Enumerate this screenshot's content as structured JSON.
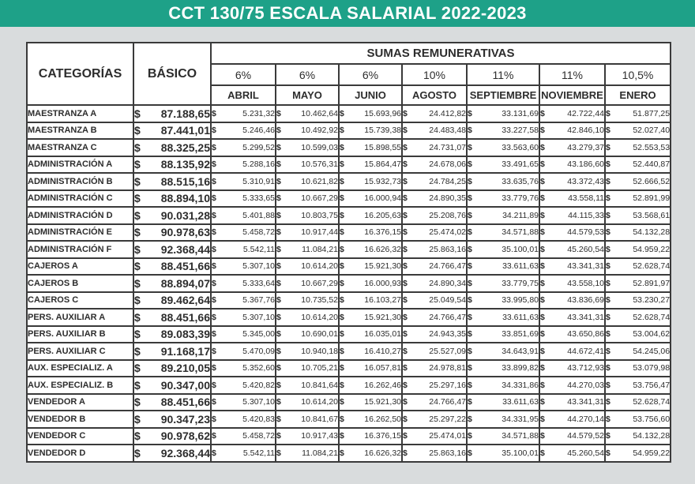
{
  "title": "CCT 130/75 ESCALA SALARIAL 2022-2023",
  "headers": {
    "categorias": "CATEGORÍAS",
    "basico": "BÁSICO",
    "sumas": "SUMAS REMUNERATIVAS",
    "currency": "$",
    "percents": [
      "6%",
      "6%",
      "6%",
      "10%",
      "11%",
      "11%",
      "10,5%"
    ],
    "months": [
      "ABRIL",
      "MAYO",
      "JUNIO",
      "AGOSTO",
      "SEPTIEMBRE",
      "NOVIEMBRE",
      "ENERO"
    ]
  },
  "rows": [
    {
      "cat": "MAESTRANZA A",
      "bas": "87.188,65",
      "v": [
        "5.231,32",
        "10.462,64",
        "15.693,96",
        "24.412,82",
        "33.131,69",
        "42.722,44",
        "51.877,25"
      ]
    },
    {
      "cat": "MAESTRANZA B",
      "bas": "87.441,01",
      "v": [
        "5.246,46",
        "10.492,92",
        "15.739,38",
        "24.483,48",
        "33.227,58",
        "42.846,10",
        "52.027,40"
      ]
    },
    {
      "cat": "MAESTRANZA C",
      "bas": "88.325,25",
      "v": [
        "5.299,52",
        "10.599,03",
        "15.898,55",
        "24.731,07",
        "33.563,60",
        "43.279,37",
        "52.553,53"
      ]
    },
    {
      "cat": "ADMINISTRACIÓN A",
      "bas": "88.135,92",
      "v": [
        "5.288,16",
        "10.576,31",
        "15.864,47",
        "24.678,06",
        "33.491,65",
        "43.186,60",
        "52.440,87"
      ]
    },
    {
      "cat": "ADMINISTRACIÓN B",
      "bas": "88.515,16",
      "v": [
        "5.310,91",
        "10.621,82",
        "15.932,73",
        "24.784,25",
        "33.635,76",
        "43.372,43",
        "52.666,52"
      ]
    },
    {
      "cat": "ADMINISTRACIÓN C",
      "bas": "88.894,10",
      "v": [
        "5.333,65",
        "10.667,29",
        "16.000,94",
        "24.890,35",
        "33.779,76",
        "43.558,11",
        "52.891,99"
      ]
    },
    {
      "cat": "ADMINISTRACIÓN D",
      "bas": "90.031,28",
      "v": [
        "5.401,88",
        "10.803,75",
        "16.205,63",
        "25.208,76",
        "34.211,89",
        "44.115,33",
        "53.568,61"
      ]
    },
    {
      "cat": "ADMINISTRACIÓN E",
      "bas": "90.978,63",
      "v": [
        "5.458,72",
        "10.917,44",
        "16.376,15",
        "25.474,02",
        "34.571,88",
        "44.579,53",
        "54.132,28"
      ]
    },
    {
      "cat": "ADMINISTRACIÓN F",
      "bas": "92.368,44",
      "v": [
        "5.542,11",
        "11.084,21",
        "16.626,32",
        "25.863,16",
        "35.100,01",
        "45.260,54",
        "54.959,22"
      ]
    },
    {
      "cat": "CAJEROS A",
      "bas": "88.451,66",
      "v": [
        "5.307,10",
        "10.614,20",
        "15.921,30",
        "24.766,47",
        "33.611,63",
        "43.341,31",
        "52.628,74"
      ]
    },
    {
      "cat": "CAJEROS B",
      "bas": "88.894,07",
      "v": [
        "5.333,64",
        "10.667,29",
        "16.000,93",
        "24.890,34",
        "33.779,75",
        "43.558,10",
        "52.891,97"
      ]
    },
    {
      "cat": "CAJEROS C",
      "bas": "89.462,64",
      "v": [
        "5.367,76",
        "10.735,52",
        "16.103,27",
        "25.049,54",
        "33.995,80",
        "43.836,69",
        "53.230,27"
      ]
    },
    {
      "cat": "PERS. AUXILIAR A",
      "bas": "88.451,66",
      "v": [
        "5.307,10",
        "10.614,20",
        "15.921,30",
        "24.766,47",
        "33.611,63",
        "43.341,31",
        "52.628,74"
      ]
    },
    {
      "cat": "PERS. AUXILIAR B",
      "bas": "89.083,39",
      "v": [
        "5.345,00",
        "10.690,01",
        "16.035,01",
        "24.943,35",
        "33.851,69",
        "43.650,86",
        "53.004,62"
      ]
    },
    {
      "cat": "PERS. AUXILIAR C",
      "bas": "91.168,17",
      "v": [
        "5.470,09",
        "10.940,18",
        "16.410,27",
        "25.527,09",
        "34.643,91",
        "44.672,41",
        "54.245,06"
      ]
    },
    {
      "cat": "AUX. ESPECIALIZ. A",
      "bas": "89.210,05",
      "v": [
        "5.352,60",
        "10.705,21",
        "16.057,81",
        "24.978,81",
        "33.899,82",
        "43.712,93",
        "53.079,98"
      ]
    },
    {
      "cat": "AUX. ESPECIALIZ. B",
      "bas": "90.347,00",
      "v": [
        "5.420,82",
        "10.841,64",
        "16.262,46",
        "25.297,16",
        "34.331,86",
        "44.270,03",
        "53.756,47"
      ]
    },
    {
      "cat": "VENDEDOR A",
      "bas": "88.451,66",
      "v": [
        "5.307,10",
        "10.614,20",
        "15.921,30",
        "24.766,47",
        "33.611,63",
        "43.341,31",
        "52.628,74"
      ]
    },
    {
      "cat": "VENDEDOR B",
      "bas": "90.347,23",
      "v": [
        "5.420,83",
        "10.841,67",
        "16.262,50",
        "25.297,22",
        "34.331,95",
        "44.270,14",
        "53.756,60"
      ]
    },
    {
      "cat": "VENDEDOR C",
      "bas": "90.978,62",
      "v": [
        "5.458,72",
        "10.917,43",
        "16.376,15",
        "25.474,01",
        "34.571,88",
        "44.579,52",
        "54.132,28"
      ]
    },
    {
      "cat": "VENDEDOR D",
      "bas": "92.368,44",
      "v": [
        "5.542,11",
        "11.084,21",
        "16.626,32",
        "25.863,16",
        "35.100,01",
        "45.260,54",
        "54.959,22"
      ]
    }
  ]
}
